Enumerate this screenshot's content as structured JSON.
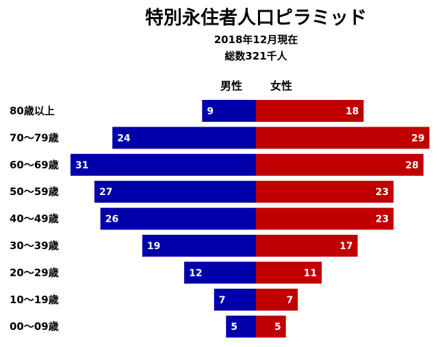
{
  "chart_data": {
    "type": "bar",
    "title": "特別永住者人口ピラミッド",
    "subtitle_lines": [
      "2018年12月現在",
      "総数321千人"
    ],
    "categories": [
      "80歳以上",
      "70〜79歳",
      "60〜69歳",
      "50〜59歳",
      "40〜49歳",
      "30〜39歳",
      "20〜29歳",
      "10〜19歳",
      "00〜09歳"
    ],
    "series": [
      {
        "name": "男性",
        "side": "left",
        "color": "#0000aa",
        "values": [
          9,
          24,
          31,
          27,
          26,
          19,
          12,
          7,
          5
        ]
      },
      {
        "name": "女性",
        "side": "right",
        "color": "#c00000",
        "values": [
          18,
          29,
          28,
          23,
          23,
          17,
          11,
          7,
          5
        ]
      }
    ],
    "xlim": [
      0,
      31
    ],
    "grid": false
  }
}
